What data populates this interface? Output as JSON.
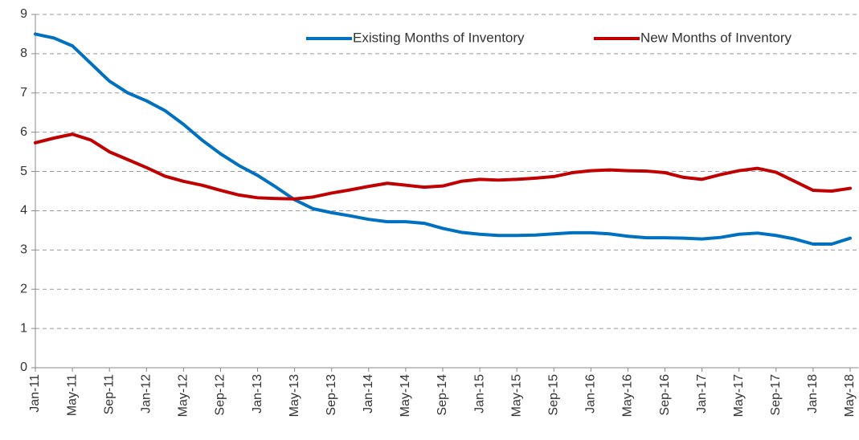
{
  "chart_data": {
    "type": "line",
    "categories": [
      "Jan-11",
      null,
      "May-11",
      null,
      "Sep-11",
      null,
      "Jan-12",
      null,
      "May-12",
      null,
      "Sep-12",
      null,
      "Jan-13",
      null,
      "May-13",
      null,
      "Sep-13",
      null,
      "Jan-14",
      null,
      "May-14",
      null,
      "Sep-14",
      null,
      "Jan-15",
      null,
      "May-15",
      null,
      "Sep-15",
      null,
      "Jan-16",
      null,
      "May-16",
      null,
      "Sep-16",
      null,
      "Jan-17",
      null,
      "May-17",
      null,
      "Sep-17",
      null,
      "Jan-18",
      null,
      "May-18"
    ],
    "series": [
      {
        "name": "Existing Months of Inventory",
        "color": "#0070c0",
        "values": [
          8.5,
          8.4,
          8.2,
          7.75,
          7.3,
          7.0,
          6.8,
          6.55,
          6.2,
          5.8,
          5.45,
          5.15,
          4.9,
          4.6,
          4.28,
          4.05,
          3.95,
          3.87,
          3.78,
          3.72,
          3.72,
          3.68,
          3.55,
          3.45,
          3.4,
          3.37,
          3.37,
          3.38,
          3.41,
          3.44,
          3.44,
          3.41,
          3.35,
          3.31,
          3.31,
          3.3,
          3.28,
          3.32,
          3.4,
          3.43,
          3.37,
          3.28,
          3.15,
          3.15,
          3.3
        ]
      },
      {
        "name": "New Months of Inventory",
        "color": "#c00000",
        "values": [
          5.73,
          5.85,
          5.95,
          5.8,
          5.5,
          5.3,
          5.1,
          4.88,
          4.75,
          4.65,
          4.52,
          4.4,
          4.33,
          4.31,
          4.3,
          4.35,
          4.45,
          4.53,
          4.62,
          4.7,
          4.65,
          4.6,
          4.63,
          4.75,
          4.8,
          4.78,
          4.8,
          4.83,
          4.87,
          4.97,
          5.02,
          5.04,
          5.02,
          5.01,
          4.97,
          4.85,
          4.8,
          4.92,
          5.02,
          5.08,
          4.98,
          4.75,
          4.52,
          4.5,
          4.57
        ]
      }
    ],
    "ylim": [
      0,
      9
    ],
    "yticks": [
      0,
      1,
      2,
      3,
      4,
      5,
      6,
      7,
      8,
      9
    ],
    "grid": true,
    "legend": "top-right"
  }
}
